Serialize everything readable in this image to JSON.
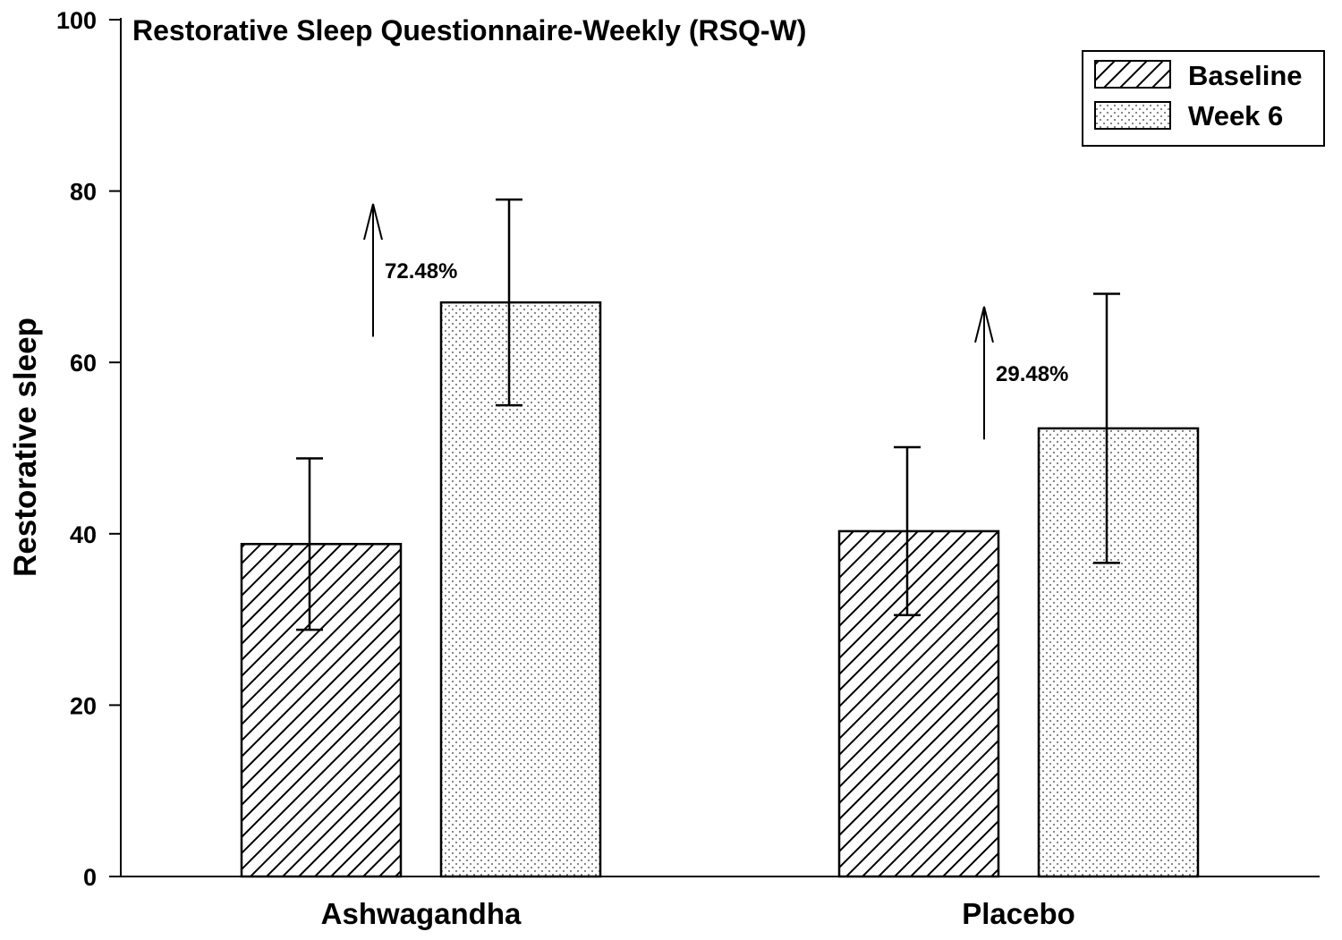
{
  "chart_data": {
    "type": "bar",
    "title": "Restorative Sleep Questionnaire-Weekly (RSQ-W)",
    "xlabel": "",
    "ylabel": "Restorative sleep",
    "ylim": [
      0,
      100
    ],
    "yticks": [
      0,
      20,
      40,
      60,
      80,
      100
    ],
    "categories": [
      "Ashwagandha",
      "Placebo"
    ],
    "series": [
      {
        "name": "Baseline",
        "pattern": "hatch",
        "values": [
          38.8,
          40.3
        ],
        "error": [
          10.0,
          9.8
        ]
      },
      {
        "name": "Week 6",
        "pattern": "dots",
        "values": [
          67.0,
          52.3
        ],
        "error": [
          12.0,
          15.7
        ]
      }
    ],
    "annotations": [
      {
        "category": "Ashwagandha",
        "text": "72.48%",
        "arrow_from": 63,
        "arrow_to": 78.5
      },
      {
        "category": "Placebo",
        "text": "29.48%",
        "arrow_from": 51,
        "arrow_to": 66.5
      }
    ],
    "legend_position": "top-right",
    "grid": false,
    "colors": {
      "bar_fill": "#ffffff",
      "stroke": "#000000"
    }
  }
}
